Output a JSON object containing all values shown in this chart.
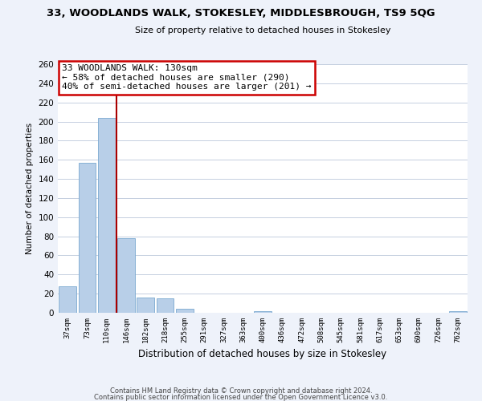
{
  "title1": "33, WOODLANDS WALK, STOKESLEY, MIDDLESBROUGH, TS9 5QG",
  "title2": "Size of property relative to detached houses in Stokesley",
  "xlabel": "Distribution of detached houses by size in Stokesley",
  "ylabel": "Number of detached properties",
  "bar_labels": [
    "37sqm",
    "73sqm",
    "110sqm",
    "146sqm",
    "182sqm",
    "218sqm",
    "255sqm",
    "291sqm",
    "327sqm",
    "363sqm",
    "400sqm",
    "436sqm",
    "472sqm",
    "508sqm",
    "545sqm",
    "581sqm",
    "617sqm",
    "653sqm",
    "690sqm",
    "726sqm",
    "762sqm"
  ],
  "bar_values": [
    28,
    157,
    204,
    78,
    16,
    15,
    4,
    0,
    0,
    0,
    2,
    0,
    0,
    0,
    0,
    0,
    0,
    0,
    0,
    0,
    2
  ],
  "bar_color": "#b8cfe8",
  "bar_edge_color": "#7aa8d0",
  "vline_color": "#aa0000",
  "annotation_title": "33 WOODLANDS WALK: 130sqm",
  "annotation_line1": "← 58% of detached houses are smaller (290)",
  "annotation_line2": "40% of semi-detached houses are larger (201) →",
  "annotation_box_color": "#ffffff",
  "annotation_border_color": "#cc0000",
  "ylim": [
    0,
    260
  ],
  "yticks": [
    0,
    20,
    40,
    60,
    80,
    100,
    120,
    140,
    160,
    180,
    200,
    220,
    240,
    260
  ],
  "footer1": "Contains HM Land Registry data © Crown copyright and database right 2024.",
  "footer2": "Contains public sector information licensed under the Open Government Licence v3.0.",
  "bg_color": "#eef2fa",
  "plot_bg_color": "#ffffff",
  "grid_color": "#c5cfe0"
}
